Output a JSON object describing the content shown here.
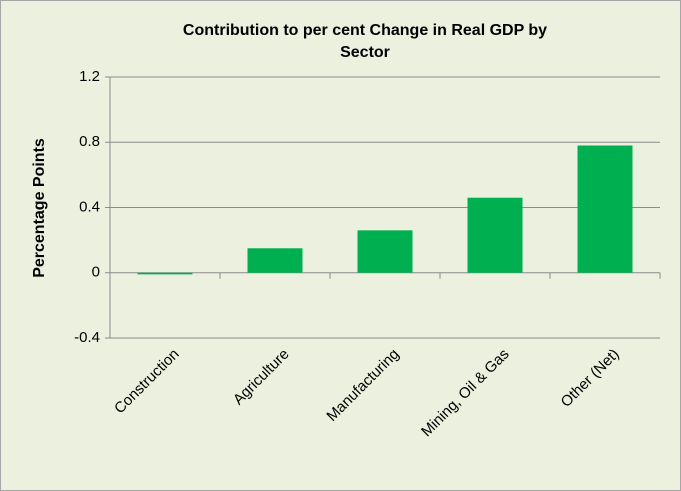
{
  "chart_data": {
    "type": "bar",
    "title": [
      "Contribution to per cent Change in Real GDP by",
      "Sector"
    ],
    "y_label": "Percentage Points",
    "categories": [
      "Construction",
      "Agriculture",
      "Manufacturing",
      "Mining, Oil & Gas",
      "Other (Net)"
    ],
    "values": [
      -0.01,
      0.15,
      0.26,
      0.46,
      0.78
    ],
    "color": "#00b050",
    "ylim": [
      -0.4,
      1.2
    ],
    "yticks": [
      -0.4,
      0,
      0.4,
      0.8,
      1.2
    ],
    "grid": true
  }
}
